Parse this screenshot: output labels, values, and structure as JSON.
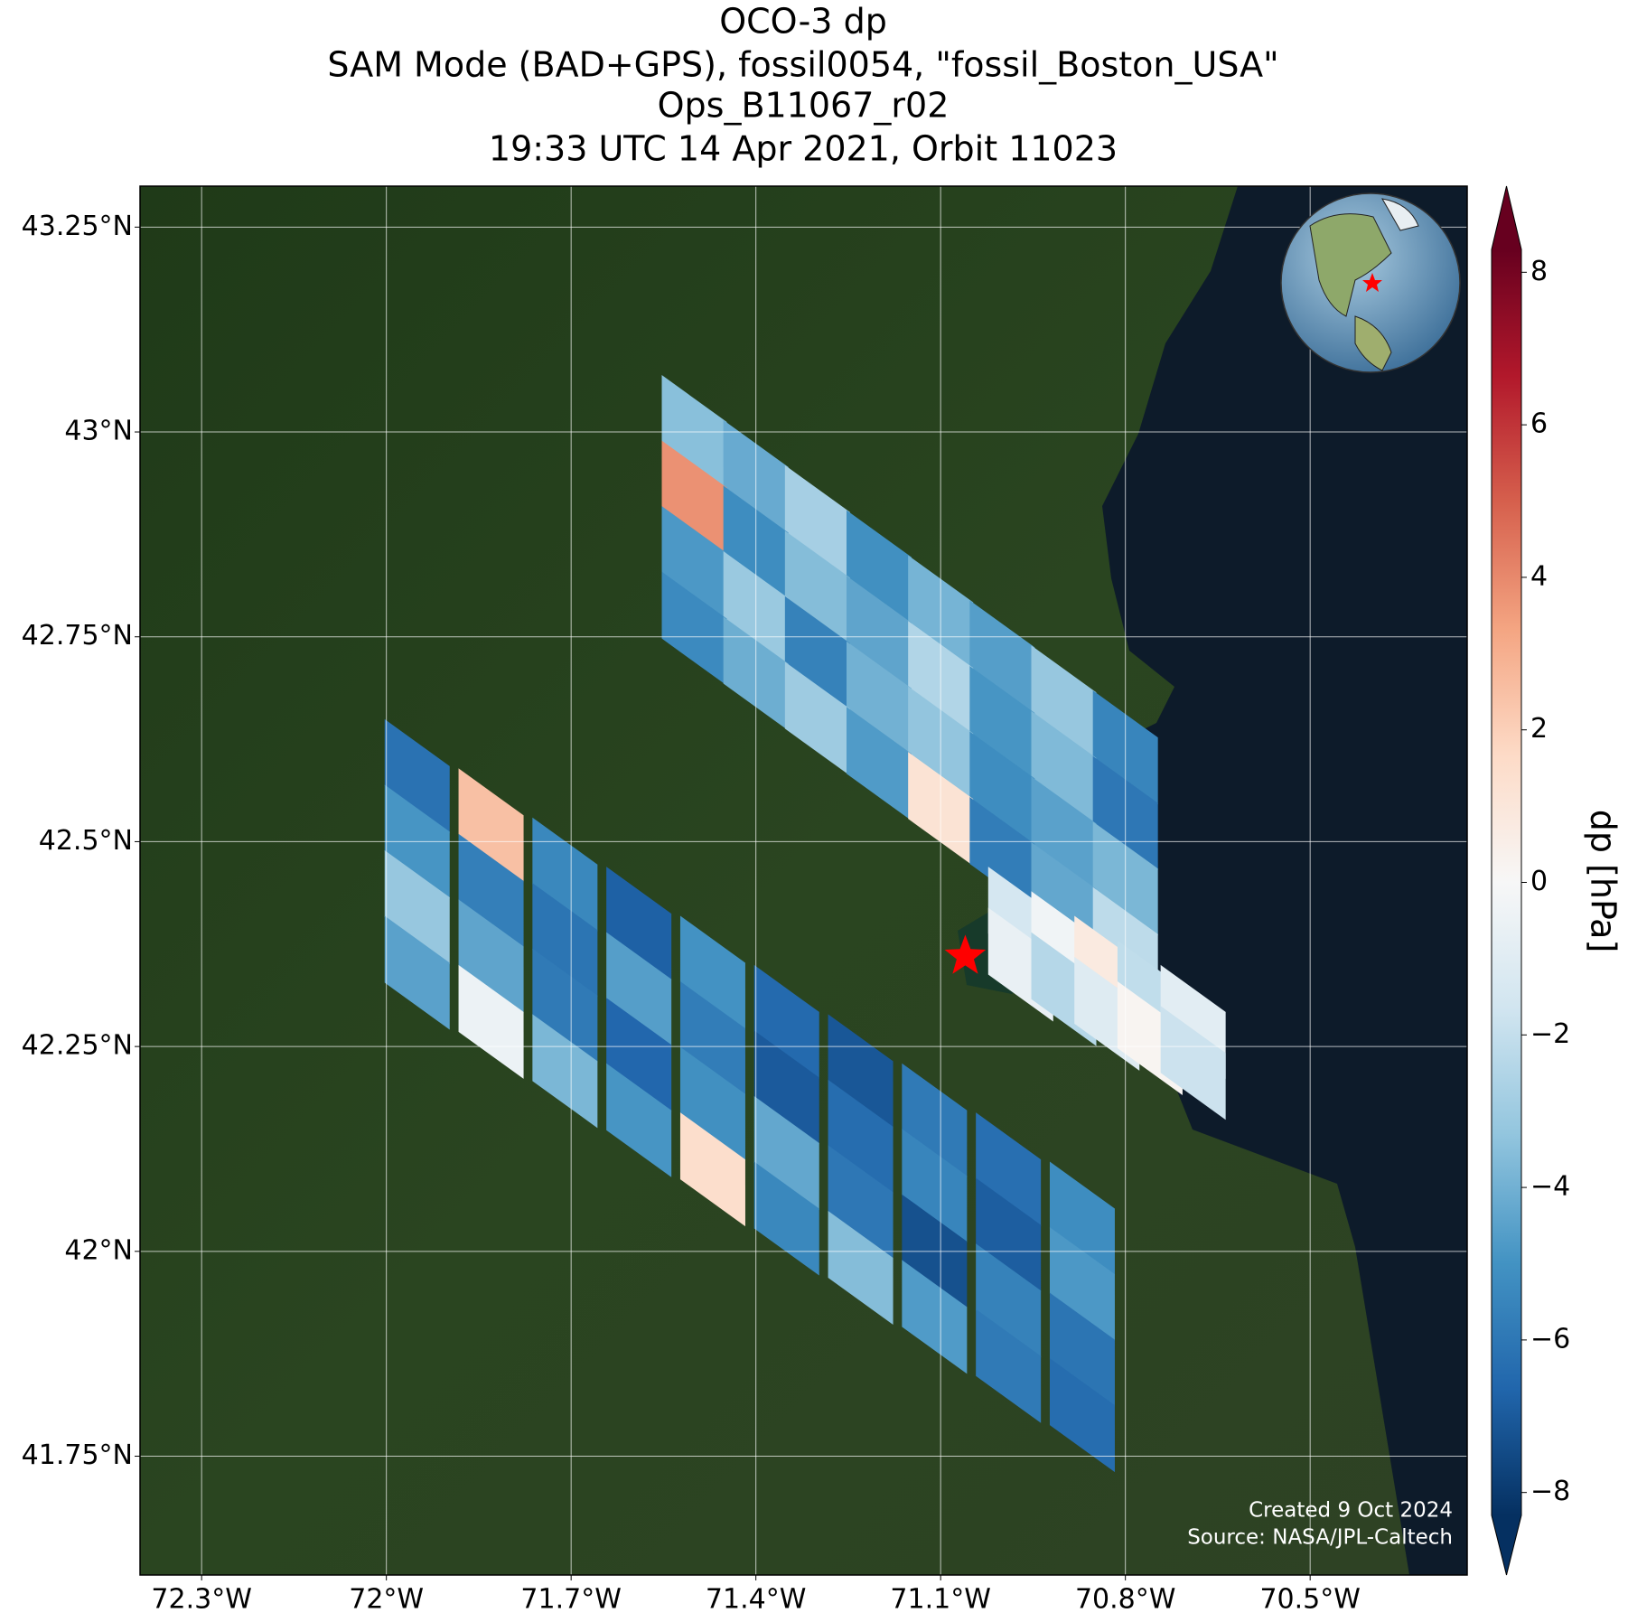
{
  "header": {
    "title_lines": [
      "OCO-3 dp",
      "SAM Mode (BAD+GPS), fossil0054, \"fossil_Boston_USA\"",
      "Ops_B11067_r02",
      "19:33 UTC 14 Apr 2021, Orbit 11023"
    ]
  },
  "map": {
    "type": "pcolor-map",
    "lon_lim": [
      -72.4,
      -70.245
    ],
    "lat_lim": [
      41.605,
      43.3
    ],
    "lon_ticks": [
      {
        "value": -72.3,
        "label": "72.3°W"
      },
      {
        "value": -72,
        "label": "72°W"
      },
      {
        "value": -71.7,
        "label": "71.7°W"
      },
      {
        "value": -71.4,
        "label": "71.4°W"
      },
      {
        "value": -71.1,
        "label": "71.1°W"
      },
      {
        "value": -70.8,
        "label": "70.8°W"
      },
      {
        "value": -70.5,
        "label": "70.5°W"
      }
    ],
    "lat_ticks": [
      {
        "value": 43.25,
        "label": "43.25°N"
      },
      {
        "value": 43,
        "label": "43°N"
      },
      {
        "value": 42.75,
        "label": "42.75°N"
      },
      {
        "value": 42.5,
        "label": "42.5°N"
      },
      {
        "value": 42.25,
        "label": "42.25°N"
      },
      {
        "value": 42,
        "label": "42°N"
      },
      {
        "value": 41.75,
        "label": "41.75°N"
      }
    ],
    "grid": true,
    "target": {
      "lon": -71.06,
      "lat": 42.36,
      "color": "#ff0000"
    },
    "soundings": {
      "lon": [
        -71.5,
        -71.4,
        -71.3,
        -71.2,
        -71.1,
        -71.0,
        -70.9,
        -70.8,
        -71.5,
        -71.4,
        -71.3,
        -71.2,
        -71.1,
        -71.0,
        -70.9,
        -70.8,
        -71.5,
        -71.4,
        -71.3,
        -71.2,
        -71.1,
        -71.0,
        -70.9,
        -70.8,
        -71.5,
        -71.4,
        -71.3,
        -71.2,
        -71.1,
        -71.0,
        -70.9,
        -70.8,
        -71.95,
        -71.83,
        -71.71,
        -71.59,
        -71.47,
        -71.35,
        -71.23,
        -71.11,
        -70.99,
        -70.87,
        -71.95,
        -71.83,
        -71.71,
        -71.59,
        -71.47,
        -71.35,
        -71.23,
        -71.11,
        -70.99,
        -70.87,
        -71.95,
        -71.83,
        -71.71,
        -71.59,
        -71.47,
        -71.35,
        -71.23,
        -71.11,
        -70.99,
        -70.87,
        -71.95,
        -71.83,
        -71.71,
        -71.59,
        -71.47,
        -71.35,
        -71.23,
        -71.11,
        -70.99,
        -70.87,
        -70.97,
        -70.9,
        -70.83,
        -70.76,
        -70.69,
        -70.97,
        -70.9,
        -70.83,
        -70.76,
        -70.69
      ],
      "lat": [
        43.0,
        42.945,
        42.89,
        42.835,
        42.78,
        42.725,
        42.67,
        42.615,
        42.92,
        42.865,
        42.81,
        42.755,
        42.7,
        42.645,
        42.59,
        42.535,
        42.84,
        42.785,
        42.73,
        42.675,
        42.62,
        42.565,
        42.51,
        42.455,
        42.76,
        42.705,
        42.65,
        42.595,
        42.54,
        42.485,
        42.43,
        42.375,
        42.58,
        42.52,
        42.46,
        42.4,
        42.34,
        42.28,
        42.22,
        42.16,
        42.1,
        42.04,
        42.5,
        42.44,
        42.38,
        42.32,
        42.26,
        42.2,
        42.14,
        42.08,
        42.02,
        41.96,
        42.42,
        42.36,
        42.3,
        42.24,
        42.18,
        42.12,
        42.06,
        42.0,
        41.94,
        41.88,
        42.34,
        42.28,
        42.22,
        42.16,
        42.1,
        42.04,
        41.98,
        41.92,
        41.86,
        41.8,
        42.4,
        42.37,
        42.34,
        42.31,
        42.28,
        42.35,
        42.32,
        42.29,
        42.26,
        42.23
      ],
      "dp": [
        -3.5,
        -4.2,
        -2.8,
        -5.1,
        -3.9,
        -4.6,
        -3.2,
        -5.5,
        3.8,
        -5.2,
        -3.6,
        -4.4,
        -2.5,
        -4.9,
        -3.7,
        -6.0,
        -4.8,
        -3.1,
        -5.6,
        -4.0,
        -3.3,
        -5.2,
        -4.5,
        -3.8,
        -5.3,
        -4.1,
        -3.0,
        -4.7,
        1.2,
        -5.8,
        -4.3,
        -2.2,
        -6.2,
        2.5,
        -5.4,
        -6.8,
        -5.0,
        -6.5,
        -7.1,
        -5.9,
        -6.3,
        -5.2,
        -4.9,
        -5.7,
        -6.1,
        -4.6,
        -5.8,
        -7.0,
        -6.4,
        -5.5,
        -6.9,
        -4.8,
        -3.2,
        -4.4,
        -5.9,
        -6.6,
        -5.1,
        -4.3,
        -6.0,
        -7.3,
        -5.6,
        -6.1,
        -4.5,
        -0.5,
        -3.8,
        -4.9,
        1.5,
        -5.4,
        -3.6,
        -4.7,
        -5.9,
        -6.4,
        -1.5,
        -0.3,
        0.8,
        -2.1,
        -0.9,
        -0.6,
        -2.4,
        -1.1,
        0.2,
        -1.8
      ]
    }
  },
  "colorbar": {
    "label": "dp [hPa]",
    "lim": [
      -8.3,
      8.3
    ],
    "ticks": [
      {
        "value": 8,
        "label": "8"
      },
      {
        "value": 6,
        "label": "6"
      },
      {
        "value": 4,
        "label": "4"
      },
      {
        "value": 2,
        "label": "2"
      },
      {
        "value": 0,
        "label": "0"
      },
      {
        "value": -2,
        "label": "−2"
      },
      {
        "value": -4,
        "label": "−4"
      },
      {
        "value": -6,
        "label": "−6"
      },
      {
        "value": -8,
        "label": "−8"
      }
    ],
    "colormap": [
      "#053061",
      "#2166ac",
      "#4393c3",
      "#92c5de",
      "#d1e5f0",
      "#f7f7f7",
      "#fddbc7",
      "#f4a582",
      "#d6604d",
      "#b2182b",
      "#67001f"
    ]
  },
  "footer": {
    "created": "Created 9 Oct 2024",
    "source": "Source: NASA/JPL-Caltech"
  }
}
